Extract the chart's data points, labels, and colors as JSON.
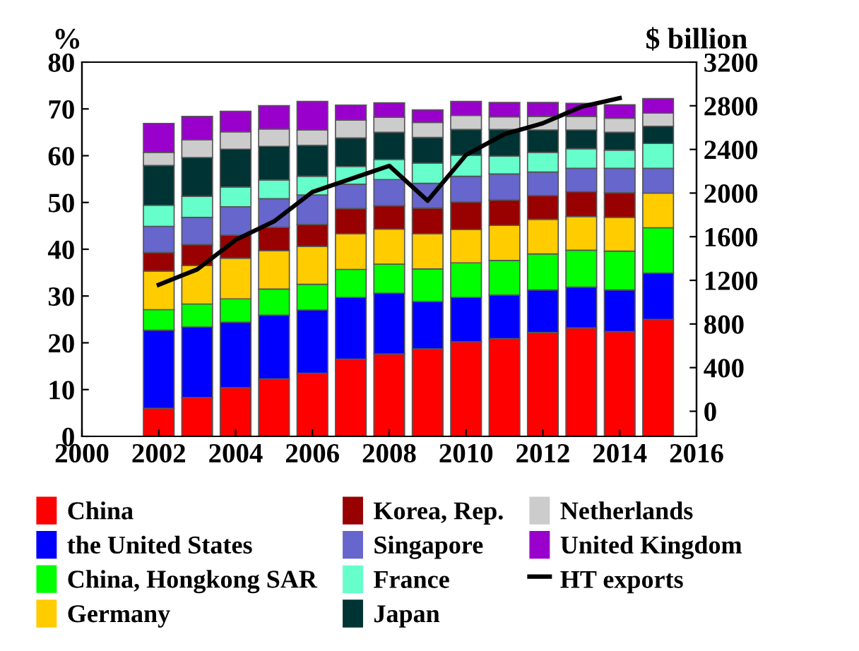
{
  "chart_data": {
    "type": "bar",
    "stacked": true,
    "ylabel": "%",
    "y2label": "$ billion",
    "x": [
      2002,
      2003,
      2004,
      2005,
      2006,
      2007,
      2008,
      2009,
      2010,
      2011,
      2012,
      2013,
      2014,
      2015
    ],
    "xlim": [
      2000,
      2016
    ],
    "xticks": [
      2000,
      2002,
      2004,
      2006,
      2008,
      2010,
      2012,
      2014,
      2016
    ],
    "ylim": [
      0,
      80
    ],
    "yticks": [
      0,
      10,
      20,
      30,
      40,
      50,
      60,
      70,
      80
    ],
    "y2lim": [
      -230,
      3200
    ],
    "y2ticks": [
      0,
      400,
      800,
      1200,
      1600,
      2000,
      2400,
      2800,
      3200
    ],
    "legend": "bottom",
    "grid": false,
    "series": [
      {
        "name": "China",
        "color": "#ff0000",
        "values": [
          6.0,
          8.3,
          10.4,
          12.3,
          13.5,
          16.5,
          17.6,
          18.7,
          20.2,
          20.9,
          22.2,
          23.2,
          22.4,
          25.0
        ]
      },
      {
        "name": "the United States",
        "color": "#0000ff",
        "values": [
          16.7,
          15.1,
          14.0,
          13.6,
          13.5,
          13.2,
          13.0,
          10.1,
          9.5,
          9.3,
          9.1,
          8.7,
          8.9,
          9.9
        ]
      },
      {
        "name": "China, Hongkong SAR",
        "color": "#00ff00",
        "values": [
          4.4,
          4.9,
          5.0,
          5.6,
          5.5,
          6.0,
          6.2,
          7.0,
          7.4,
          7.4,
          7.7,
          7.9,
          8.3,
          9.7
        ]
      },
      {
        "name": "Germany",
        "color": "#ffcc00",
        "values": [
          8.2,
          8.2,
          8.7,
          8.2,
          8.1,
          7.6,
          7.5,
          7.5,
          7.1,
          7.5,
          7.4,
          7.2,
          7.2,
          7.4
        ]
      },
      {
        "name": "Korea, Rep.",
        "color": "#990000",
        "values": [
          4.0,
          4.5,
          4.9,
          5.0,
          4.7,
          5.4,
          5.0,
          5.5,
          5.9,
          5.4,
          5.1,
          5.3,
          5.3,
          null
        ]
      },
      {
        "name": "Singapore",
        "color": "#6666cc",
        "values": [
          5.6,
          5.8,
          6.1,
          6.1,
          6.3,
          5.2,
          5.6,
          5.3,
          5.5,
          5.6,
          5.0,
          5.0,
          5.2,
          5.3
        ]
      },
      {
        "name": "France",
        "color": "#66ffcc",
        "values": [
          4.5,
          4.5,
          4.2,
          4.0,
          4.0,
          3.8,
          4.3,
          4.3,
          4.5,
          3.8,
          4.2,
          4.2,
          3.9,
          5.3
        ]
      },
      {
        "name": "Japan",
        "color": "#003333",
        "values": [
          8.5,
          8.3,
          8.1,
          7.2,
          6.6,
          6.1,
          5.8,
          5.5,
          5.5,
          5.7,
          4.8,
          4.0,
          3.8,
          3.7
        ]
      },
      {
        "name": "Netherlands",
        "color": "#cccccc",
        "values": [
          2.8,
          3.8,
          3.7,
          3.7,
          3.3,
          3.8,
          3.2,
          3.2,
          3.0,
          2.7,
          2.9,
          2.9,
          3.0,
          2.8
        ]
      },
      {
        "name": "United Kingdom",
        "color": "#9900cc",
        "values": [
          6.2,
          5.0,
          4.4,
          5.0,
          6.1,
          3.2,
          3.1,
          2.7,
          3.0,
          3.1,
          3.0,
          2.8,
          2.9,
          3.1
        ]
      },
      {
        "name": "HT exports",
        "type": "line",
        "axis": "y2",
        "color": "#000000",
        "x": [
          2002,
          2003,
          2004,
          2005,
          2006,
          2007,
          2008,
          2009,
          2010,
          2011,
          2012,
          2013,
          2014
        ],
        "values": [
          1160,
          1300,
          1570,
          1740,
          2010,
          2130,
          2250,
          1930,
          2350,
          2540,
          2640,
          2790,
          2870
        ]
      }
    ]
  }
}
